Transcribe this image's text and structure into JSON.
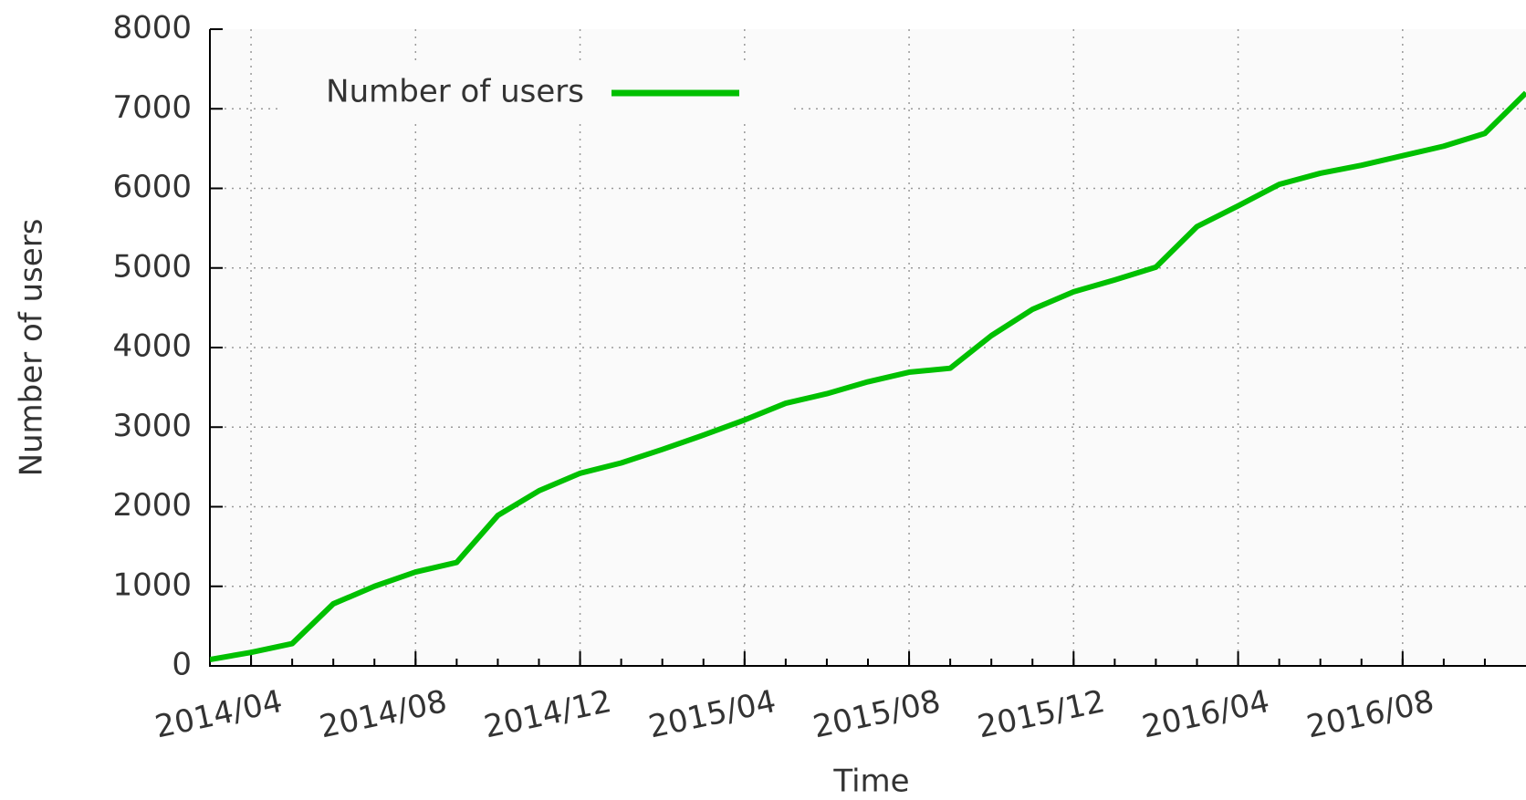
{
  "chart_data": {
    "type": "line",
    "x_label": "Time",
    "y_label": "Number of users",
    "x": [
      "2014/03",
      "2014/04",
      "2014/05",
      "2014/06",
      "2014/07",
      "2014/08",
      "2014/09",
      "2014/10",
      "2014/11",
      "2014/12",
      "2015/01",
      "2015/02",
      "2015/03",
      "2015/04",
      "2015/05",
      "2015/06",
      "2015/07",
      "2015/08",
      "2015/09",
      "2015/10",
      "2015/11",
      "2015/12",
      "2016/01",
      "2016/02",
      "2016/03",
      "2016/04",
      "2016/05",
      "2016/06",
      "2016/07",
      "2016/08",
      "2016/09",
      "2016/10",
      "2016/11"
    ],
    "series": [
      {
        "name": "Number of users",
        "color": "#00c000",
        "values": [
          80,
          170,
          280,
          780,
          1000,
          1180,
          1300,
          1890,
          2200,
          2420,
          2550,
          2720,
          2900,
          3090,
          3300,
          3420,
          3570,
          3690,
          3740,
          4150,
          4480,
          4700,
          4850,
          5010,
          5520,
          5780,
          6050,
          6190,
          6290,
          6410,
          6530,
          6690,
          7200
        ]
      }
    ],
    "xlim": [
      "2014/03",
      "2016/11"
    ],
    "xticks": [
      "2014/04",
      "2014/08",
      "2014/12",
      "2015/04",
      "2015/08",
      "2015/12",
      "2016/04",
      "2016/08"
    ],
    "ylim": [
      0,
      8000
    ],
    "yticks": [
      0,
      1000,
      2000,
      3000,
      4000,
      5000,
      6000,
      7000,
      8000
    ],
    "grid": true,
    "legend": "top-left"
  }
}
